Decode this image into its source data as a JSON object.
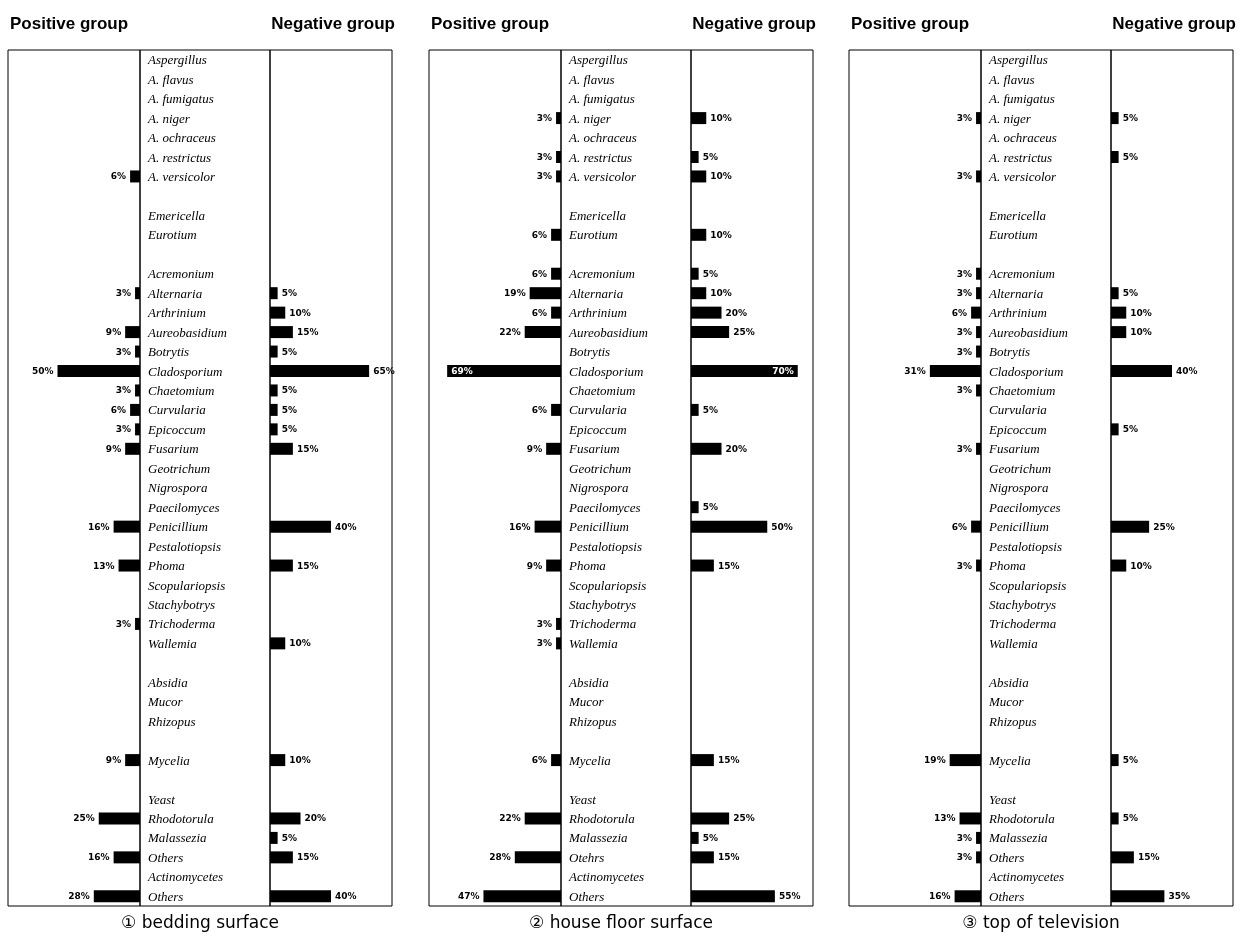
{
  "chart_data": [
    {
      "type": "bar",
      "orientation": "horizontal",
      "title": "① bedding surface",
      "legend": "top left",
      "tick_labels": "y",
      "xlim": [
        80,
        0
      ],
      "categories": [
        "Aspergillus",
        "A. flavus",
        "A. fumigatus",
        "A. niger",
        "A. ochraceus",
        "A. restrictus",
        "A. versicolor",
        null,
        "Emericella",
        "Eurotium",
        null,
        "Acremonium",
        "Alternaria",
        "Arthrinium",
        "Aureobasidium",
        "Botrytis",
        "Cladosporium",
        "Chaetomium",
        "Curvularia",
        "Epicoccum",
        "Fusarium",
        "Geotrichum",
        "Nigrospora",
        "Paecilomyces",
        "Penicillium",
        "Pestalotiopsis",
        "Phoma",
        "Scopulariopsis",
        "Stachybotrys",
        "Trichoderma",
        "Wallemia",
        null,
        "Absidia",
        "Mucor",
        "Rhizopus",
        null,
        "Mycelia",
        null,
        "Yeast",
        "Rhodotorula",
        "Malassezia",
        "Others",
        "Actinomycetes",
        "Others"
      ],
      "series": [
        {
          "name": "Positive group",
          "color": "#000000",
          "values": [
            null,
            null,
            null,
            null,
            null,
            null,
            6,
            null,
            null,
            null,
            null,
            null,
            3,
            null,
            9,
            3,
            50,
            3,
            6,
            3,
            9,
            null,
            null,
            null,
            16,
            null,
            13,
            null,
            null,
            3,
            null,
            null,
            null,
            null,
            null,
            null,
            9,
            null,
            null,
            25,
            null,
            16,
            null,
            28
          ],
          "value_labels": [
            null,
            null,
            null,
            null,
            null,
            null,
            "6%",
            null,
            null,
            null,
            null,
            null,
            "3%",
            null,
            "9%",
            "3%",
            "50%",
            "3%",
            "6%",
            "3%",
            "9%",
            null,
            null,
            null,
            "16%",
            null,
            "13%",
            null,
            null,
            "3%",
            null,
            null,
            null,
            null,
            null,
            null,
            "9%",
            null,
            null,
            "25%",
            null,
            "16%",
            null,
            "28%"
          ]
        }
      ]
    },
    {
      "type": "bar",
      "orientation": "horizontal",
      "legend": "top right",
      "tick_labels": false,
      "xlim": [
        0,
        80
      ],
      "categories": [
        null,
        null,
        null,
        null,
        null,
        null,
        null,
        null,
        null,
        null,
        null,
        null,
        null,
        null,
        null,
        null,
        null,
        null,
        null,
        null,
        null,
        null,
        null,
        null,
        null,
        null,
        null,
        null,
        null,
        null,
        null,
        null,
        null,
        null,
        null,
        null,
        null,
        null,
        null,
        null,
        null,
        null,
        null,
        null
      ],
      "series": [
        {
          "name": "Negative group",
          "color": "#000000",
          "values": [
            null,
            null,
            null,
            null,
            null,
            null,
            null,
            null,
            null,
            null,
            null,
            null,
            5,
            10,
            15,
            5,
            65,
            5,
            5,
            5,
            15,
            null,
            null,
            null,
            40,
            null,
            15,
            null,
            null,
            null,
            10,
            null,
            null,
            null,
            null,
            null,
            10,
            null,
            null,
            20,
            5,
            15,
            null,
            40
          ],
          "value_labels": [
            null,
            null,
            null,
            null,
            null,
            null,
            null,
            null,
            null,
            null,
            null,
            null,
            "5%",
            "10%",
            "15%",
            "5%",
            "65%",
            "5%",
            "5%",
            "5%",
            "15%",
            null,
            null,
            null,
            "40%",
            null,
            "15%",
            null,
            null,
            null,
            "10%",
            null,
            null,
            null,
            null,
            null,
            "10%",
            null,
            null,
            "20%",
            "5%",
            "15%",
            null,
            "40%"
          ]
        }
      ]
    },
    {
      "type": "bar",
      "orientation": "horizontal",
      "title": "② house floor surface",
      "legend": "top left",
      "tick_labels": "y",
      "xlim": [
        80,
        0
      ],
      "categories": [
        "Aspergillus",
        "A. flavus",
        "A. fumigatus",
        "A. niger",
        "A. ochraceus",
        "A. restrictus",
        "A. versicolor",
        null,
        "Emericella",
        "Eurotium",
        null,
        "Acremonium",
        "Alternaria",
        "Arthrinium",
        "Aureobasidium",
        "Botrytis",
        "Cladosporium",
        "Chaetomium",
        "Curvularia",
        "Epicoccum",
        "Fusarium",
        "Geotrichum",
        "Nigrospora",
        "Paecilomyces",
        "Penicillium",
        "Pestalotiopsis",
        "Phoma",
        "Scopulariopsis",
        "Stachybotrys",
        "Trichoderma",
        "Wallemia",
        null,
        "Absidia",
        "Mucor",
        "Rhizopus",
        null,
        "Mycelia",
        null,
        "Yeast",
        "Rhodotorula",
        "Malassezia",
        "Otehrs",
        "Actinomycetes",
        "Others"
      ],
      "series": [
        {
          "name": "Positive group",
          "color": "#000000",
          "values": [
            null,
            null,
            null,
            3,
            null,
            3,
            3,
            null,
            null,
            6,
            null,
            6,
            19,
            6,
            22,
            null,
            69,
            null,
            6,
            null,
            9,
            null,
            null,
            null,
            16,
            null,
            9,
            null,
            null,
            3,
            3,
            null,
            null,
            null,
            null,
            null,
            6,
            null,
            null,
            22,
            null,
            28,
            null,
            47
          ],
          "value_labels": [
            null,
            null,
            null,
            "3%",
            null,
            "3%",
            "3%",
            null,
            null,
            "6%",
            null,
            "6%",
            "19%",
            "6%",
            "22%",
            null,
            "69%",
            null,
            "6%",
            null,
            "9%",
            null,
            null,
            null,
            "16%",
            null,
            "9%",
            null,
            null,
            "3%",
            "3%",
            null,
            null,
            null,
            null,
            null,
            "6%",
            null,
            null,
            "22%",
            null,
            "28%",
            null,
            "47%"
          ]
        }
      ]
    },
    {
      "type": "bar",
      "orientation": "horizontal",
      "legend": "top right",
      "tick_labels": false,
      "xlim": [
        0,
        80
      ],
      "categories": [
        null,
        null,
        null,
        null,
        null,
        null,
        null,
        null,
        null,
        null,
        null,
        null,
        null,
        null,
        null,
        null,
        null,
        null,
        null,
        null,
        null,
        null,
        null,
        null,
        null,
        null,
        null,
        null,
        null,
        null,
        null,
        null,
        null,
        null,
        null,
        null,
        null,
        null,
        null,
        null,
        null,
        null,
        null,
        null
      ],
      "series": [
        {
          "name": "Negative group",
          "color": "#000000",
          "values": [
            null,
            null,
            null,
            10,
            null,
            5,
            10,
            null,
            null,
            10,
            null,
            5,
            10,
            20,
            25,
            null,
            70,
            null,
            5,
            null,
            20,
            null,
            null,
            5,
            50,
            null,
            15,
            null,
            null,
            null,
            null,
            null,
            null,
            null,
            null,
            null,
            15,
            null,
            null,
            25,
            5,
            15,
            null,
            55
          ],
          "value_labels": [
            null,
            null,
            null,
            "10%",
            null,
            "5%",
            "10%",
            null,
            null,
            "10%",
            null,
            "5%",
            "10%",
            "20%",
            "25%",
            null,
            "70%",
            null,
            "5%",
            null,
            "20%",
            null,
            null,
            "5%",
            "50%",
            null,
            "15%",
            null,
            null,
            null,
            null,
            null,
            null,
            null,
            null,
            null,
            "15%",
            null,
            null,
            "25%",
            "5%",
            "15%",
            null,
            "55%"
          ]
        }
      ]
    },
    {
      "type": "bar",
      "orientation": "horizontal",
      "title": "③ top of television",
      "legend": "top left",
      "tick_labels": "y",
      "xlim": [
        80,
        0
      ],
      "categories": [
        "Aspergillus",
        "A. flavus",
        "A. fumigatus",
        "A. niger",
        "A. ochraceus",
        "A. restrictus",
        "A. versicolor",
        null,
        "Emericella",
        "Eurotium",
        null,
        "Acremonium",
        "Alternaria",
        "Arthrinium",
        "Aureobasidium",
        "Botrytis",
        "Cladosporium",
        "Chaetomium",
        "Curvularia",
        "Epicoccum",
        "Fusarium",
        "Geotrichum",
        "Nigrospora",
        "Paecilomyces",
        "Penicillium",
        "Pestalotiopsis",
        "Phoma",
        "Scopulariopsis",
        "Stachybotrys",
        "Trichoderma",
        "Wallemia",
        null,
        "Absidia",
        "Mucor",
        "Rhizopus",
        null,
        "Mycelia",
        null,
        "Yeast",
        "Rhodotorula",
        "Malassezia",
        "Others",
        "Actinomycetes",
        "Others"
      ],
      "series": [
        {
          "name": "Positive group",
          "color": "#000000",
          "values": [
            null,
            null,
            null,
            3,
            null,
            null,
            3,
            null,
            null,
            null,
            null,
            3,
            3,
            6,
            3,
            3,
            31,
            3,
            null,
            null,
            3,
            null,
            null,
            null,
            6,
            null,
            3,
            null,
            null,
            null,
            null,
            null,
            null,
            null,
            null,
            null,
            19,
            null,
            null,
            13,
            3,
            3,
            null,
            16
          ],
          "value_labels": [
            null,
            null,
            null,
            "3%",
            null,
            null,
            "3%",
            null,
            null,
            null,
            null,
            "3%",
            "3%",
            "6%",
            "3%",
            "3%",
            "31%",
            "3%",
            null,
            null,
            "3%",
            null,
            null,
            null,
            "6%",
            null,
            "3%",
            null,
            null,
            null,
            null,
            null,
            null,
            null,
            null,
            null,
            "19%",
            null,
            null,
            "13%",
            "3%",
            "3%",
            null,
            "16%"
          ]
        }
      ]
    },
    {
      "type": "bar",
      "orientation": "horizontal",
      "legend": "top right",
      "tick_labels": false,
      "xlim": [
        0,
        80
      ],
      "categories": [
        null,
        null,
        null,
        null,
        null,
        null,
        null,
        null,
        null,
        null,
        null,
        null,
        null,
        null,
        null,
        null,
        null,
        null,
        null,
        null,
        null,
        null,
        null,
        null,
        null,
        null,
        null,
        null,
        null,
        null,
        null,
        null,
        null,
        null,
        null,
        null,
        null,
        null,
        null,
        null,
        null,
        null,
        null,
        null
      ],
      "series": [
        {
          "name": "Negative group",
          "color": "#000000",
          "values": [
            null,
            null,
            null,
            5,
            null,
            5,
            null,
            null,
            null,
            null,
            null,
            null,
            5,
            10,
            10,
            null,
            40,
            null,
            null,
            5,
            null,
            null,
            null,
            null,
            25,
            null,
            10,
            null,
            null,
            null,
            null,
            null,
            null,
            null,
            null,
            null,
            5,
            null,
            null,
            5,
            null,
            15,
            null,
            35
          ],
          "value_labels": [
            null,
            null,
            null,
            "5%",
            null,
            "5%",
            null,
            null,
            null,
            null,
            null,
            null,
            "5%",
            "10%",
            "10%",
            null,
            "40%",
            null,
            null,
            "5%",
            null,
            null,
            null,
            null,
            "25%",
            null,
            "10%",
            null,
            null,
            null,
            null,
            null,
            null,
            null,
            null,
            null,
            "5%",
            null,
            null,
            "5%",
            null,
            "15%",
            null,
            "35%"
          ]
        }
      ]
    }
  ]
}
